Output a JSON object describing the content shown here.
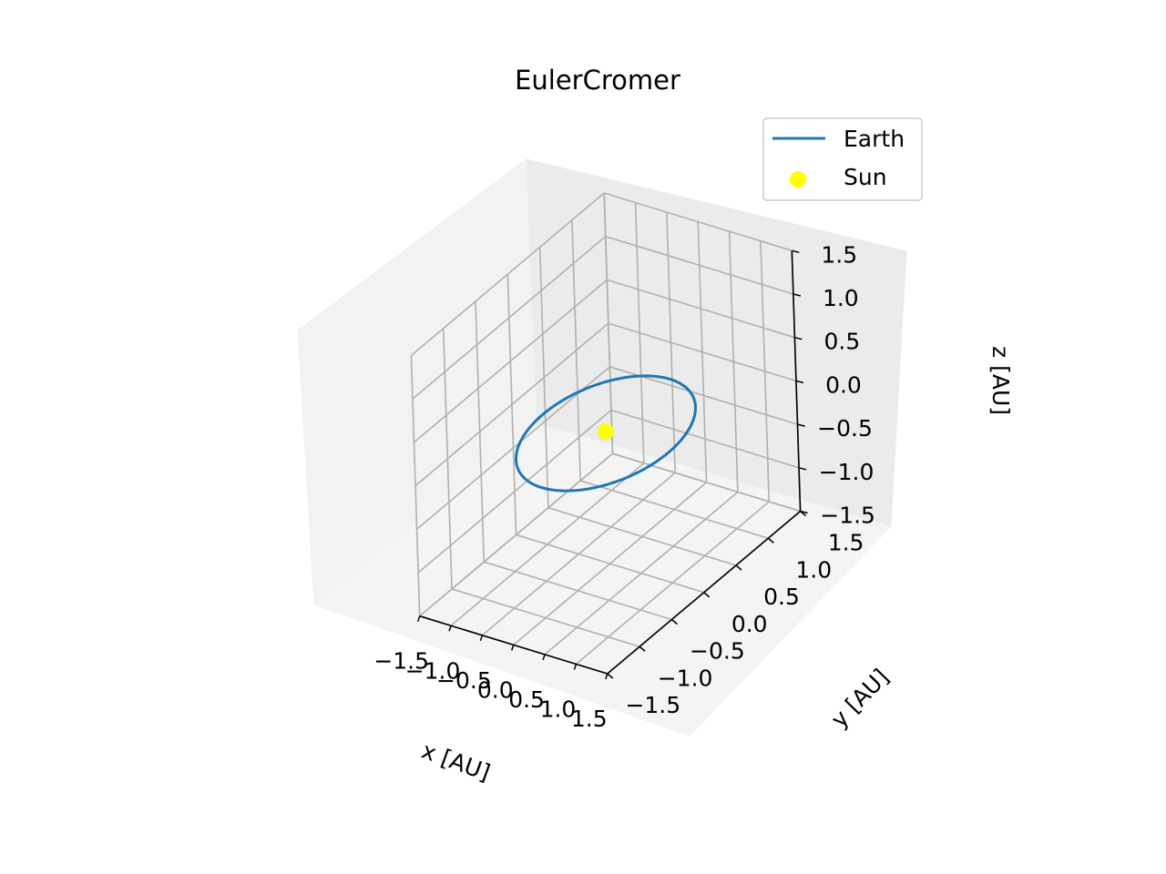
{
  "chart_data": {
    "type": "line",
    "projection": "3d",
    "title": "EulerCromer",
    "xlabel": "x [AU]",
    "ylabel": "y [AU]",
    "zlabel": "z [AU]",
    "xlim": [
      -1.5,
      1.5
    ],
    "ylim": [
      -1.5,
      1.5
    ],
    "zlim": [
      -1.5,
      1.5
    ],
    "xticks": [
      "−1.5",
      "−1.0",
      "−0.5",
      "0.0",
      "0.5",
      "1.0",
      "1.5"
    ],
    "yticks": [
      "−1.5",
      "−1.0",
      "−0.5",
      "0.0",
      "0.5",
      "1.0",
      "1.5"
    ],
    "zticks": [
      "−1.5",
      "−1.0",
      "−0.5",
      "0.0",
      "0.5",
      "1.0",
      "1.5"
    ],
    "grid": true,
    "legend_placement": "top-right",
    "series": [
      {
        "name": "Earth",
        "kind": "line",
        "color": "#1f77b4",
        "shape": "circular orbit",
        "center": [
          0,
          0,
          0
        ],
        "radius": 1.0,
        "z": 0
      },
      {
        "name": "Sun",
        "kind": "scatter",
        "color": "#ffff00",
        "x": [
          0
        ],
        "y": [
          0
        ],
        "z": [
          0
        ]
      }
    ]
  }
}
